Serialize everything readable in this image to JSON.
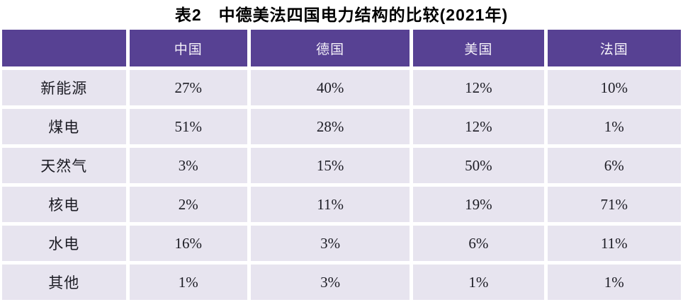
{
  "title": "表2　中德美法四国电力结构的比较(2021年)",
  "colors": {
    "header_bg": "#574193",
    "cell_bg": "#E7E4EF",
    "header_text": "#F5F2FA",
    "cell_text": "#1C1C24",
    "page_bg": "#FFFFFF"
  },
  "table": {
    "columns": [
      "",
      "中国",
      "德国",
      "美国",
      "法国"
    ],
    "rows": [
      {
        "label": "新能源",
        "values": [
          "27%",
          "40%",
          "12%",
          "10%"
        ]
      },
      {
        "label": "煤电",
        "values": [
          "51%",
          "28%",
          "12%",
          "1%"
        ]
      },
      {
        "label": "天然气",
        "values": [
          "3%",
          "15%",
          "50%",
          "6%"
        ]
      },
      {
        "label": "核电",
        "values": [
          "2%",
          "11%",
          "19%",
          "71%"
        ]
      },
      {
        "label": "水电",
        "values": [
          "16%",
          "3%",
          "6%",
          "11%"
        ]
      },
      {
        "label": "其他",
        "values": [
          "1%",
          "3%",
          "1%",
          "1%"
        ]
      }
    ]
  },
  "chart_data": {
    "type": "table",
    "title": "表2　中德美法四国电力结构的比较(2021年)",
    "categories": [
      "新能源",
      "煤电",
      "天然气",
      "核电",
      "水电",
      "其他"
    ],
    "series": [
      {
        "name": "中国",
        "values": [
          27,
          51,
          3,
          2,
          16,
          1
        ]
      },
      {
        "name": "德国",
        "values": [
          40,
          28,
          15,
          11,
          3,
          3
        ]
      },
      {
        "name": "美国",
        "values": [
          12,
          12,
          50,
          19,
          6,
          1
        ]
      },
      {
        "name": "法国",
        "values": [
          10,
          1,
          6,
          71,
          11,
          1
        ]
      }
    ],
    "unit": "%"
  }
}
